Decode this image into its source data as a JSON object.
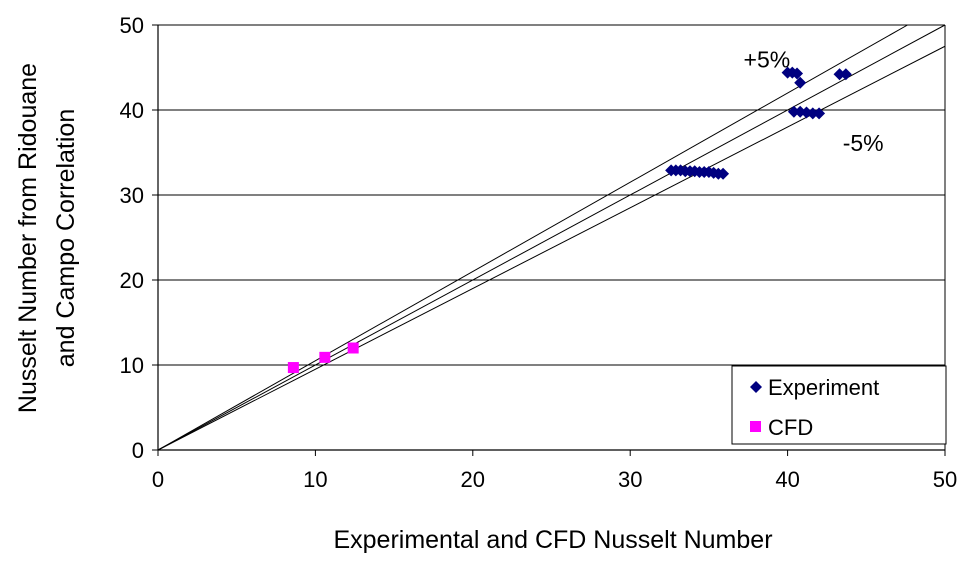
{
  "chart_data": {
    "type": "scatter",
    "title": "",
    "xlabel": "Experimental and CFD Nusselt Number",
    "ylabel_lines": [
      "Nusselt Number from Ridouane",
      "and Campo Correlation"
    ],
    "xlim": [
      0,
      50
    ],
    "ylim": [
      0,
      50
    ],
    "xticks": [
      0,
      10,
      20,
      30,
      40,
      50
    ],
    "yticks": [
      0,
      10,
      20,
      30,
      40,
      50
    ],
    "grid": "horizontal",
    "legend_position": "bottom-right",
    "series": [
      {
        "name": "Experiment",
        "marker": "diamond",
        "color": "#000080",
        "points": [
          [
            32.6,
            32.9
          ],
          [
            32.9,
            32.9
          ],
          [
            33.2,
            32.9
          ],
          [
            33.5,
            32.8
          ],
          [
            33.8,
            32.8
          ],
          [
            34.1,
            32.8
          ],
          [
            34.4,
            32.7
          ],
          [
            34.7,
            32.7
          ],
          [
            35.0,
            32.7
          ],
          [
            35.3,
            32.6
          ],
          [
            35.6,
            32.5
          ],
          [
            35.9,
            32.5
          ],
          [
            40.0,
            44.4
          ],
          [
            40.3,
            44.4
          ],
          [
            40.6,
            44.3
          ],
          [
            40.8,
            43.2
          ],
          [
            40.4,
            39.8
          ],
          [
            40.8,
            39.8
          ],
          [
            41.2,
            39.7
          ],
          [
            41.6,
            39.6
          ],
          [
            42.0,
            39.6
          ],
          [
            43.3,
            44.2
          ],
          [
            43.7,
            44.2
          ]
        ]
      },
      {
        "name": "CFD",
        "marker": "square",
        "color": "#FF00FF",
        "points": [
          [
            8.6,
            9.7
          ],
          [
            10.6,
            10.9
          ],
          [
            12.4,
            12.0
          ]
        ]
      }
    ],
    "reference_lines": [
      {
        "label": "+5%",
        "slope": 1.05
      },
      {
        "label": "",
        "slope": 1.0
      },
      {
        "label": "-5%",
        "slope": 0.95
      }
    ],
    "annotations": [
      {
        "text": "+5%",
        "x": 37.2,
        "y": 45.0
      },
      {
        "text": "-5%",
        "x": 43.5,
        "y": 35.2
      }
    ]
  }
}
